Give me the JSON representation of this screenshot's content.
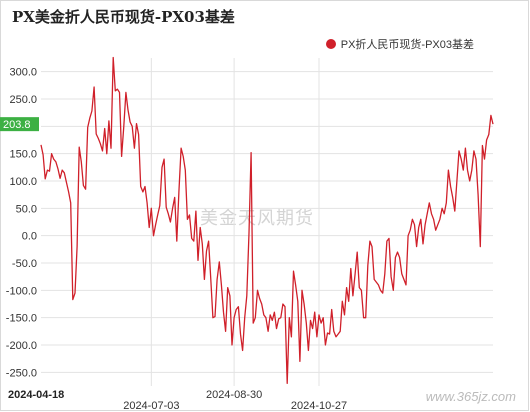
{
  "title": "PX美金折人民币现货-PX03基差",
  "legend": {
    "label": "PX折人民币现货-PX03基差",
    "color": "#d0202a"
  },
  "watermark": "美金天风期货",
  "site": "www.365jz.com",
  "colors": {
    "line": "#d0202a",
    "grid": "#e3e3e3",
    "badge": "#3cb043"
  },
  "chart_data": {
    "type": "line",
    "title": "PX美金折人民币现货-PX03基差",
    "xlabel": "",
    "ylabel": "",
    "ylim": [
      -275,
      325
    ],
    "yticks": [
      300,
      250,
      200,
      150,
      100,
      50,
      0,
      -50,
      -100,
      -150,
      -200,
      -250
    ],
    "ytick_labels": [
      "300.0",
      "250.0",
      "200.0",
      "150.0",
      "100.0",
      "50.0",
      "0.0",
      "-50.0",
      "-100.0",
      "-150.0",
      "-200.0",
      "-250.0"
    ],
    "xticks": [
      {
        "label": "2024-04-18",
        "index": 0,
        "bold": true
      },
      {
        "label": "2024-07-03",
        "index": 52,
        "bold": false
      },
      {
        "label": "2024-08-30",
        "index": 91,
        "bold": false
      },
      {
        "label": "2024-10-27",
        "index": 131,
        "bold": false
      }
    ],
    "last_value_label": "203.8",
    "grid": true,
    "legend_position": "top-right",
    "series": [
      {
        "name": "PX折人民币现货-PX03基差",
        "values": [
          166,
          148,
          104,
          120,
          118,
          150,
          140,
          135,
          122,
          105,
          120,
          115,
          97,
          80,
          60,
          -117,
          -105,
          -20,
          162,
          135,
          92,
          85,
          198,
          215,
          228,
          272,
          186,
          178,
          168,
          155,
          196,
          150,
          210,
          160,
          326,
          265,
          268,
          262,
          145,
          200,
          262,
          230,
          208,
          200,
          160,
          205,
          185,
          90,
          80,
          90,
          60,
          15,
          50,
          0,
          20,
          38,
          55,
          125,
          140,
          52,
          40,
          25,
          50,
          70,
          -10,
          80,
          160,
          145,
          120,
          30,
          38,
          -5,
          -10,
          45,
          -45,
          15,
          -15,
          -80,
          -28,
          -10,
          -80,
          -150,
          -148,
          -80,
          -48,
          -90,
          -140,
          -175,
          -95,
          -110,
          -200,
          -150,
          -135,
          -130,
          -180,
          -210,
          -150,
          -110,
          5,
          152,
          -160,
          -150,
          -100,
          -115,
          -125,
          -145,
          -150,
          -175,
          -145,
          -155,
          -140,
          -170,
          -152,
          -150,
          -125,
          -130,
          -270,
          -150,
          -185,
          -65,
          -90,
          -120,
          -230,
          -100,
          -125,
          -160,
          -210,
          -155,
          -170,
          -140,
          -185,
          -145,
          -160,
          -150,
          -200,
          -178,
          -180,
          -135,
          -175,
          -185,
          -180,
          -175,
          -120,
          -145,
          -95,
          -120,
          -60,
          -110,
          -70,
          -30,
          -95,
          -100,
          -150,
          -150,
          -55,
          -10,
          -20,
          -80,
          -85,
          -90,
          -100,
          -105,
          -70,
          -10,
          -5,
          -75,
          -100,
          -40,
          -30,
          -40,
          -70,
          -80,
          -90,
          0,
          10,
          30,
          20,
          -20,
          15,
          30,
          -15,
          20,
          40,
          60,
          40,
          30,
          10,
          20,
          30,
          50,
          40,
          60,
          120,
          90,
          70,
          45,
          100,
          155,
          140,
          120,
          160,
          120,
          100,
          120,
          155,
          140,
          75,
          -20,
          165,
          140,
          175,
          185,
          220,
          204
        ],
        "color": "#d0202a"
      }
    ]
  }
}
